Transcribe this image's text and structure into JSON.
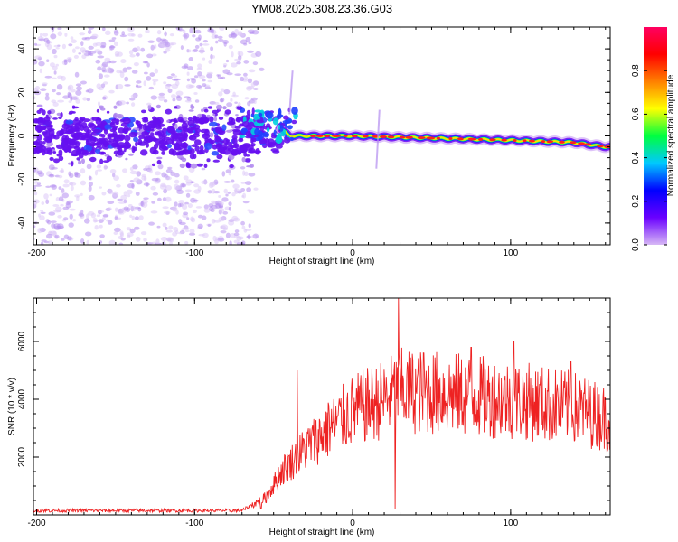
{
  "title": "YM08.2025.308.23.36.G03",
  "colors": {
    "line": "#ee2222",
    "frame": "#000000",
    "speck": "#b48ef0",
    "speck_light": "#dcc8f8",
    "core": "#6610f0"
  },
  "chart_data": [
    {
      "type": "heatmap",
      "title": "YM08.2025.308.23.36.G03",
      "xlabel": "Height of straight line (km)",
      "ylabel": "Frequency (Hz)",
      "xlim": [
        -202,
        163
      ],
      "ylim": [
        -50,
        50
      ],
      "xticks": [
        -200,
        -100,
        0,
        100
      ],
      "yticks": [
        -40,
        -20,
        0,
        20,
        40
      ],
      "colorbar": {
        "label": "Normalized spectral amplitude",
        "range": [
          0,
          1
        ],
        "ticks": [
          0.0,
          0.2,
          0.4,
          0.6,
          0.8
        ],
        "tick_labels": [
          "0.0",
          "0.2",
          "0.4",
          "0.6",
          "0.8"
        ],
        "stops": [
          "#d7b8f5",
          "#6a00ff",
          "#0000ff",
          "#00c8ff",
          "#00ff40",
          "#ffff00",
          "#ff8000",
          "#ff0000",
          "#ff0060"
        ]
      },
      "noise_region_km": [
        -202,
        -65
      ],
      "signal_track": [
        {
          "x": -200,
          "freq": 0
        },
        {
          "x": -150,
          "freq": 0
        },
        {
          "x": -100,
          "freq": 0
        },
        {
          "x": -60,
          "freq": 8
        },
        {
          "x": -50,
          "freq": 6
        },
        {
          "x": -40,
          "freq": 0
        },
        {
          "x": -20,
          "freq": 0
        },
        {
          "x": 0,
          "freq": 0
        },
        {
          "x": 50,
          "freq": -1
        },
        {
          "x": 100,
          "freq": -2
        },
        {
          "x": 140,
          "freq": -3
        },
        {
          "x": 160,
          "freq": -5
        }
      ]
    },
    {
      "type": "line",
      "xlabel": "Height of straight line (km)",
      "ylabel": "SNR (10 * v/v)",
      "xlim": [
        -202,
        163
      ],
      "ylim": [
        0,
        7500
      ],
      "xticks": [
        -200,
        -100,
        0,
        100
      ],
      "yticks": [
        2000,
        4000,
        6000
      ],
      "series": [
        {
          "name": "SNR",
          "envelope": [
            {
              "x": -202,
              "y": 150
            },
            {
              "x": -70,
              "y": 150
            },
            {
              "x": -55,
              "y": 600
            },
            {
              "x": -45,
              "y": 1500
            },
            {
              "x": -30,
              "y": 2300
            },
            {
              "x": -10,
              "y": 3200
            },
            {
              "x": 0,
              "y": 3600
            },
            {
              "x": 20,
              "y": 4000
            },
            {
              "x": 30,
              "y": 4300
            },
            {
              "x": 60,
              "y": 4200
            },
            {
              "x": 80,
              "y": 4100
            },
            {
              "x": 100,
              "y": 4000
            },
            {
              "x": 140,
              "y": 3700
            },
            {
              "x": 163,
              "y": 3300
            }
          ],
          "peaks": [
            {
              "x": -35,
              "y": 5000
            },
            {
              "x": -15,
              "y": 3800
            },
            {
              "x": 29,
              "y": 7500
            },
            {
              "x": 45,
              "y": 5600
            },
            {
              "x": 75,
              "y": 5800
            },
            {
              "x": 102,
              "y": 6000
            },
            {
              "x": 120,
              "y": 5100
            },
            {
              "x": 138,
              "y": 5300
            }
          ],
          "dips": [
            {
              "x": -58,
              "y": 200
            },
            {
              "x": 27,
              "y": 200
            }
          ]
        }
      ]
    }
  ]
}
